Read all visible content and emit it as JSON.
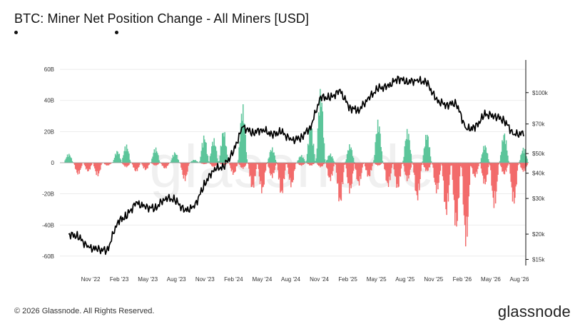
{
  "title": "BTC: Miner Net Position Change - All Miners [USD]",
  "legend": {
    "items": [
      {
        "label": ""
      },
      {
        "label": ""
      }
    ]
  },
  "watermark": "glassnode",
  "footer": "© 2026 Glassnode. All Rights Reserved.",
  "brand": "glassnode",
  "colors": {
    "positive": "#5cc59a",
    "negative": "#f26b6b",
    "price": "#000000",
    "grid": "#e6e6e6"
  },
  "chart_data": {
    "type": "bar",
    "title": "BTC: Miner Net Position Change - All Miners [USD]",
    "xlabel": "",
    "ylabel": "",
    "grid": true,
    "legend_placement": "top-left",
    "x_ticks": [
      "Nov '22",
      "Feb '23",
      "May '23",
      "Aug '23",
      "Nov '23",
      "Feb '24",
      "May '24",
      "Aug '24",
      "Nov '24",
      "Feb '25",
      "May '25",
      "Aug '25",
      "Nov '25",
      "Feb '26",
      "May '26",
      "Aug '26"
    ],
    "y_left": {
      "ylim": [
        -66,
        66
      ],
      "ticks": [
        -60,
        -40,
        -20,
        0,
        20,
        40,
        60
      ],
      "tick_labels": [
        "-60B",
        "-40B",
        "-20B",
        "0",
        "20B",
        "40B",
        "60B"
      ]
    },
    "y_right": {
      "scale": "log",
      "ylim": [
        14000,
        145000
      ],
      "ticks": [
        15000,
        20000,
        30000,
        40000,
        50000,
        70000,
        100000
      ],
      "tick_labels": [
        "$15k",
        "$20k",
        "$30k",
        "$40k",
        "$50k",
        "$70k",
        "$100k"
      ]
    },
    "series": [
      {
        "type": "bar",
        "axis": "left",
        "unit": "USD billions",
        "dates": [
          "2022-09",
          "2022-10",
          "2022-11",
          "2022-12",
          "2023-01",
          "2023-02",
          "2023-03",
          "2023-04",
          "2023-05",
          "2023-06",
          "2023-07",
          "2023-08",
          "2023-09",
          "2023-10",
          "2023-11",
          "2023-12",
          "2024-01",
          "2024-02",
          "2024-03",
          "2024-04",
          "2024-05",
          "2024-06",
          "2024-07",
          "2024-08",
          "2024-09",
          "2024-10",
          "2024-11",
          "2024-12",
          "2025-01",
          "2025-02",
          "2025-03",
          "2025-04",
          "2025-05",
          "2025-06",
          "2025-07",
          "2025-08",
          "2025-09",
          "2025-10",
          "2025-11",
          "2025-12",
          "2026-01",
          "2026-02",
          "2026-03",
          "2026-04",
          "2026-05",
          "2026-06",
          "2026-07",
          "2026-08"
        ],
        "values": [
          6,
          -7,
          -6,
          -8,
          -4,
          8,
          12,
          -6,
          -4,
          10,
          -3,
          7,
          -12,
          2,
          18,
          16,
          22,
          -5,
          38,
          -18,
          -20,
          10,
          -22,
          -14,
          5,
          25,
          48,
          6,
          -28,
          12,
          -20,
          -10,
          28,
          -18,
          -12,
          22,
          -25,
          20,
          -2,
          -35,
          -45,
          -55,
          -10,
          12,
          -30,
          20,
          -28,
          10
        ],
        "lows": [
          0,
          -8,
          -6,
          -9,
          -2,
          0,
          -3,
          -6,
          -5,
          -2,
          -4,
          0,
          -12,
          0,
          -1,
          -3,
          -2,
          -8,
          -4,
          -18,
          -20,
          -10,
          -22,
          -16,
          -2,
          -2,
          -3,
          -12,
          -28,
          -20,
          -15,
          -10,
          -2,
          -16,
          -18,
          -12,
          -25,
          -6,
          -20,
          -35,
          -45,
          -55,
          -10,
          -15,
          -30,
          -8,
          -28,
          -6
        ]
      },
      {
        "type": "line",
        "axis": "right",
        "name": "",
        "unit": "USD",
        "dates": [
          "2022-09",
          "2022-10",
          "2022-11",
          "2022-12",
          "2023-01",
          "2023-02",
          "2023-03",
          "2023-04",
          "2023-05",
          "2023-06",
          "2023-07",
          "2023-08",
          "2023-09",
          "2023-10",
          "2023-11",
          "2023-12",
          "2024-01",
          "2024-02",
          "2024-03",
          "2024-04",
          "2024-05",
          "2024-06",
          "2024-07",
          "2024-08",
          "2024-09",
          "2024-10",
          "2024-11",
          "2024-12",
          "2025-01",
          "2025-02",
          "2025-03",
          "2025-04",
          "2025-05",
          "2025-06",
          "2025-07",
          "2025-08",
          "2025-09",
          "2025-10",
          "2025-11",
          "2025-12",
          "2026-01",
          "2026-02",
          "2026-03",
          "2026-04",
          "2026-05",
          "2026-06",
          "2026-07",
          "2026-08"
        ],
        "values": [
          20000,
          19500,
          17200,
          16800,
          16600,
          23000,
          24500,
          28500,
          27200,
          26800,
          30200,
          29600,
          26000,
          27300,
          35000,
          42000,
          43000,
          51000,
          68000,
          63000,
          66000,
          62000,
          64000,
          58000,
          60000,
          68000,
          95000,
          94000,
          102000,
          84000,
          82000,
          94000,
          105000,
          107000,
          118000,
          113000,
          115000,
          112000,
          91000,
          87000,
          89000,
          66000,
          67000,
          78000,
          77000,
          73000,
          62000,
          63000
        ]
      }
    ]
  }
}
